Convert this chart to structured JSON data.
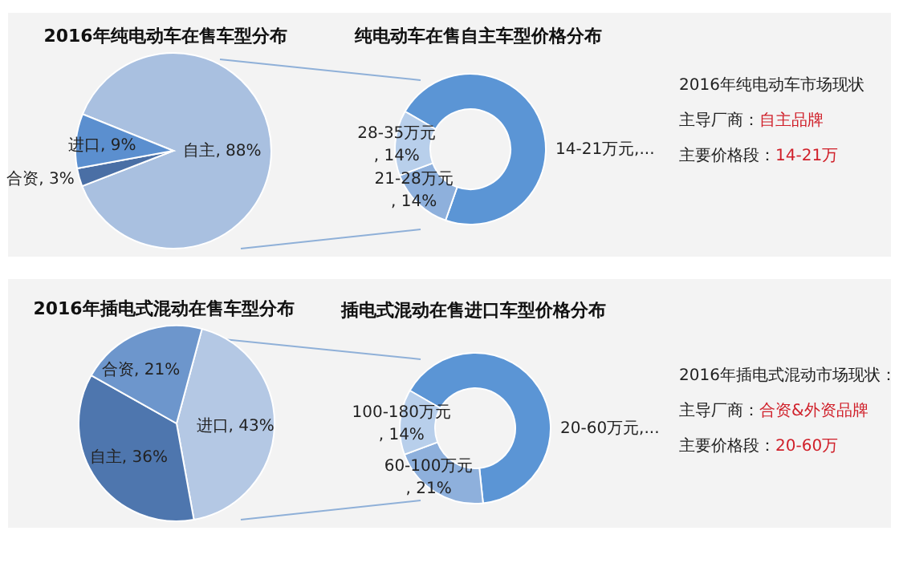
{
  "chart_data": [
    {
      "type": "pie",
      "title": "2016年纯电动车在售车型分布",
      "categories": [
        "自主",
        "合资",
        "进口"
      ],
      "values": [
        88,
        3,
        9
      ],
      "colors": [
        "#a9c0e0",
        "#4a6fa5",
        "#5b8fcf"
      ],
      "value_labels": [
        ", 88%",
        ", 3%",
        ", 9%"
      ]
    },
    {
      "type": "donut",
      "title": "纯电动车在售自主车型价格分布",
      "categories": [
        "14-21万元",
        "21-28万元",
        "28-35万元"
      ],
      "values": [
        72,
        14,
        14
      ],
      "colors": [
        "#5b95d5",
        "#8eb0dc",
        "#b8cfeb"
      ],
      "value_labels": [
        ",...",
        ", 14%",
        ", 14%"
      ]
    },
    {
      "type": "other",
      "annotations": [
        "2016年纯电动车市场现状",
        "主导厂商：",
        "自主品牌",
        "主要价格段：",
        "14-21万"
      ]
    },
    {
      "type": "pie",
      "title": "2016年插电式混动在售车型分布",
      "categories": [
        "进口",
        "自主",
        "合资"
      ],
      "values": [
        43,
        36,
        21
      ],
      "colors": [
        "#b4c8e4",
        "#4e76ae",
        "#6d96cc"
      ],
      "value_labels": [
        ", 43%",
        ", 36%",
        ", 21%"
      ]
    },
    {
      "type": "donut",
      "title": "插电式混动在售进口车型价格分布",
      "categories": [
        "20-60万元",
        "60-100万元",
        "100-180万元"
      ],
      "values": [
        65,
        21,
        14
      ],
      "colors": [
        "#5b95d5",
        "#8eb0dc",
        "#b8cfeb"
      ],
      "value_labels": [
        ",...",
        ", 21%",
        ", 14%"
      ]
    },
    {
      "type": "other",
      "annotations": [
        "2016年插电式混动市场现状：",
        "主导厂商：",
        "合资&外资品牌",
        "主要价格段：",
        "20-60万"
      ]
    }
  ]
}
